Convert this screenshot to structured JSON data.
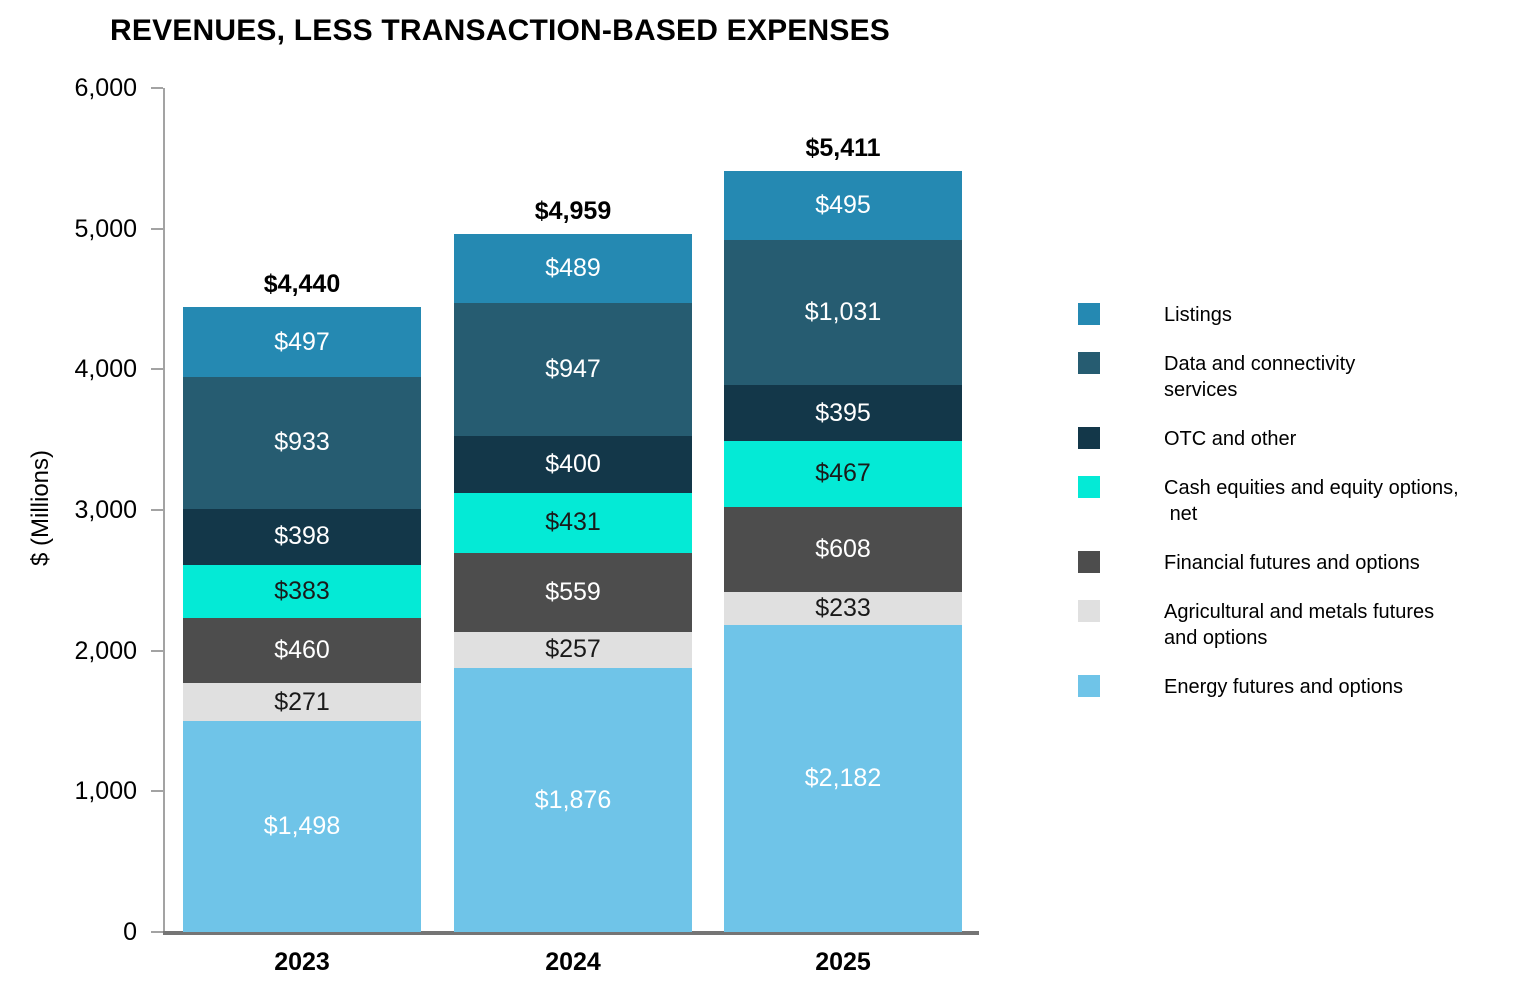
{
  "title": "REVENUES, LESS TRANSACTION-BASED EXPENSES",
  "y_axis": {
    "label": "$ (Millions)",
    "ticks": [
      {
        "label": "6,000",
        "value": 6000
      },
      {
        "label": "5,000",
        "value": 5000
      },
      {
        "label": "4,000",
        "value": 4000
      },
      {
        "label": "3,000",
        "value": 3000
      },
      {
        "label": "2,000",
        "value": 2000
      },
      {
        "label": "1,000",
        "value": 1000
      },
      {
        "label": "0",
        "value": 0
      }
    ]
  },
  "chart_data": {
    "type": "bar",
    "stacked": true,
    "title": "REVENUES, LESS TRANSACTION-BASED EXPENSES",
    "xlabel": "",
    "ylabel": "$ (Millions)",
    "ylim": [
      0,
      6000
    ],
    "grid": false,
    "legend_position": "right",
    "categories": [
      "2023",
      "2024",
      "2025"
    ],
    "totals": {
      "values": [
        4440,
        4959,
        5411
      ],
      "labels": [
        "$4,440",
        "$4,959",
        "$5,411"
      ]
    },
    "series": [
      {
        "name": "Listings",
        "color": "#2589b2",
        "text_color": "#ffffff",
        "values": [
          497,
          489,
          495
        ],
        "labels": [
          "$497",
          "$489",
          "$495"
        ]
      },
      {
        "name": "Data and connectivity\nservices",
        "color": "#265c71",
        "text_color": "#ffffff",
        "values": [
          933,
          947,
          1031
        ],
        "labels": [
          "$933",
          "$947",
          "$1,031"
        ]
      },
      {
        "name": "OTC and other",
        "color": "#133749",
        "text_color": "#ffffff",
        "values": [
          398,
          400,
          395
        ],
        "labels": [
          "$398",
          "$400",
          "$395"
        ]
      },
      {
        "name": "Cash equities and equity options,\n net",
        "color": "#04ead6",
        "text_color": "#1a1a1a",
        "values": [
          383,
          431,
          467
        ],
        "labels": [
          "$383",
          "$431",
          "$467"
        ]
      },
      {
        "name": "Financial futures and options",
        "color": "#4d4d4d",
        "text_color": "#ffffff",
        "values": [
          460,
          559,
          608
        ],
        "labels": [
          "$460",
          "$559",
          "$608"
        ]
      },
      {
        "name": "Agricultural and metals futures\nand options",
        "color": "#e0e0e0",
        "text_color": "#1a1a1a",
        "values": [
          271,
          257,
          233
        ],
        "labels": [
          "$271",
          "$257",
          "$233"
        ]
      },
      {
        "name": "Energy futures and options",
        "color": "#6fc4e8",
        "text_color": "#ffffff",
        "values": [
          1498,
          1876,
          2182
        ],
        "labels": [
          "$1,498",
          "$1,876",
          "$2,182"
        ]
      }
    ]
  }
}
